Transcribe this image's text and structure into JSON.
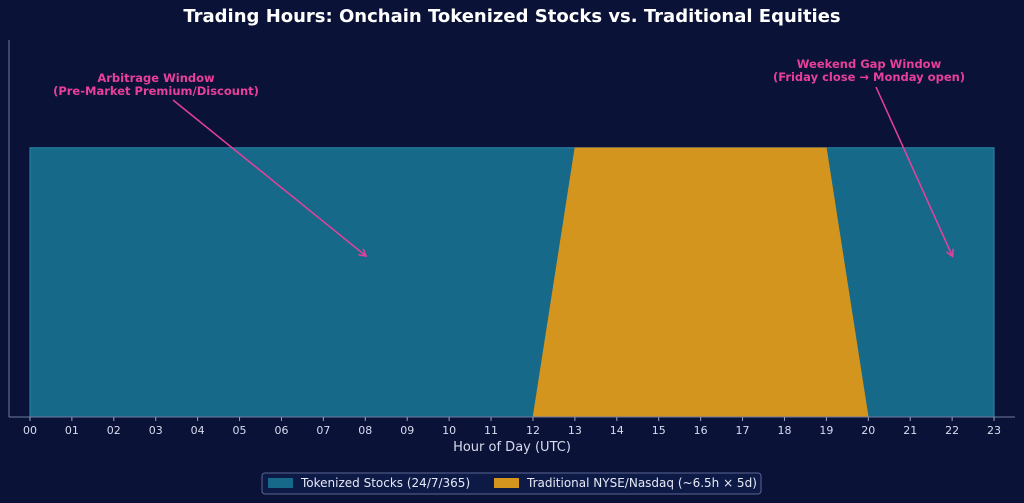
{
  "chart_data": {
    "type": "area",
    "title": "Trading Hours: Onchain Tokenized Stocks vs. Traditional Equities",
    "xlabel": "Hour of Day (UTC)",
    "ylabel": "",
    "x": [
      0,
      1,
      2,
      3,
      4,
      5,
      6,
      7,
      8,
      9,
      10,
      11,
      12,
      13,
      14,
      15,
      16,
      17,
      18,
      19,
      20,
      21,
      22,
      23
    ],
    "tick_labels": [
      "00",
      "01",
      "02",
      "03",
      "04",
      "05",
      "06",
      "07",
      "08",
      "09",
      "10",
      "11",
      "12",
      "13",
      "14",
      "15",
      "16",
      "17",
      "18",
      "19",
      "20",
      "21",
      "22",
      "23"
    ],
    "xlim": [
      -0.5,
      23.5
    ],
    "ylim": [
      0,
      1.4
    ],
    "series": [
      {
        "name": "Tokenized Stocks (24/7/365)",
        "color": "#17698a",
        "values": [
          1,
          1,
          1,
          1,
          1,
          1,
          1,
          1,
          1,
          1,
          1,
          1,
          1,
          1,
          1,
          1,
          1,
          1,
          1,
          1,
          1,
          1,
          1,
          1
        ]
      },
      {
        "name": "Traditional NYSE/Nasdaq (~6.5h × 5d)",
        "color": "#d4951f",
        "values": [
          0,
          0,
          0,
          0,
          0,
          0,
          0,
          0,
          0,
          0,
          0,
          0,
          0,
          1,
          1,
          1,
          1,
          1,
          1,
          1,
          0,
          0,
          0,
          0
        ]
      }
    ],
    "annotations": [
      {
        "text": [
          "Arbitrage Window",
          "(Pre-Market Premium/Discount)"
        ],
        "target": [
          8,
          0.6
        ],
        "color": "#e8409a"
      },
      {
        "text": [
          "Weekend Gap Window",
          "(Friday close → Monday open)"
        ],
        "target": [
          22,
          0.6
        ],
        "color": "#e8409a"
      }
    ],
    "grid": false,
    "legend_position": "bottom-center"
  }
}
